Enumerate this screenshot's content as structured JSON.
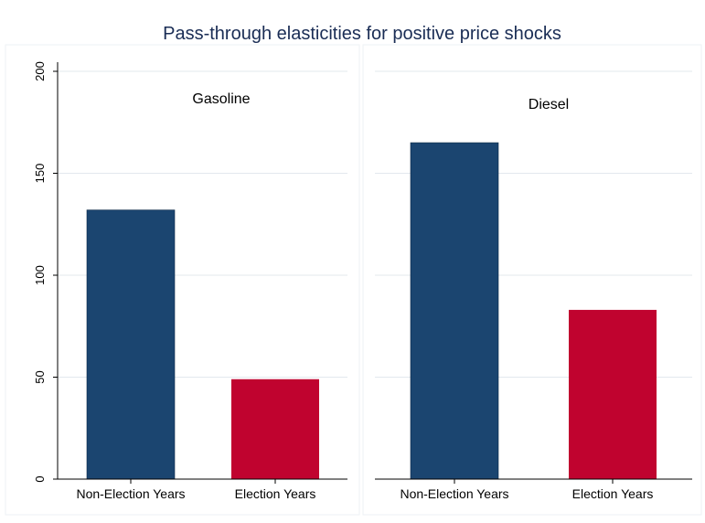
{
  "chart_data": {
    "type": "bar",
    "title": "Pass-through elasticities for positive price shocks",
    "ylim": [
      0,
      200
    ],
    "yticks": [
      0,
      50,
      100,
      150,
      200
    ],
    "grid": true,
    "colors": {
      "non_election": "#1b4570",
      "election": "#c0032f"
    },
    "panels": [
      {
        "title": "Gasoline",
        "categories": [
          "Non-Election Years",
          "Election Years"
        ],
        "values": [
          132,
          49
        ]
      },
      {
        "title": "Diesel",
        "categories": [
          "Non-Election Years",
          "Election Years"
        ],
        "values": [
          165,
          83
        ]
      }
    ]
  }
}
